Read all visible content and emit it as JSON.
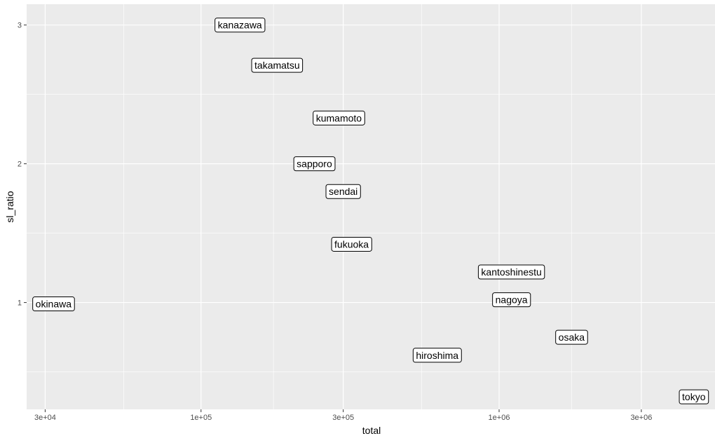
{
  "chart_data": {
    "type": "scatter",
    "geom": "label",
    "xlabel": "total",
    "ylabel": "sl_ratio",
    "x_scale": "log10",
    "xlim": [
      26000,
      5300000
    ],
    "ylim": [
      0.23,
      3.15
    ],
    "x_ticks": [
      {
        "value": 30000,
        "label": "3e+04"
      },
      {
        "value": 100000,
        "label": "1e+05"
      },
      {
        "value": 300000,
        "label": "3e+05"
      },
      {
        "value": 1000000,
        "label": "1e+06"
      },
      {
        "value": 3000000,
        "label": "3e+06"
      }
    ],
    "x_minor_ticks": [
      55000,
      175000,
      550000,
      1750000
    ],
    "y_ticks": [
      {
        "value": 1,
        "label": "1"
      },
      {
        "value": 2,
        "label": "2"
      },
      {
        "value": 3,
        "label": "3"
      }
    ],
    "y_minor_ticks": [
      0.5,
      1.5,
      2.5
    ],
    "grid": true,
    "colors": {
      "panel_background": "#ebebeb",
      "grid_line": "#ffffff",
      "label_fill": "#ffffff",
      "label_border": "#000000",
      "text": "#000000",
      "tick_text": "#4d4d4d"
    },
    "points": [
      {
        "label": "kanazawa",
        "x": 135000,
        "y": 3.0
      },
      {
        "label": "takamatsu",
        "x": 180000,
        "y": 2.71
      },
      {
        "label": "kumamoto",
        "x": 290000,
        "y": 2.33
      },
      {
        "label": "sapporo",
        "x": 240000,
        "y": 2.0
      },
      {
        "label": "sendai",
        "x": 300000,
        "y": 1.8
      },
      {
        "label": "fukuoka",
        "x": 320000,
        "y": 1.42
      },
      {
        "label": "kantoshinestu",
        "x": 1100000,
        "y": 1.22
      },
      {
        "label": "okinawa",
        "x": 32000,
        "y": 0.99
      },
      {
        "label": "nagoya",
        "x": 1100000,
        "y": 1.02
      },
      {
        "label": "osaka",
        "x": 1750000,
        "y": 0.75
      },
      {
        "label": "hiroshima",
        "x": 620000,
        "y": 0.62
      },
      {
        "label": "tokyo",
        "x": 4500000,
        "y": 0.32
      }
    ]
  }
}
